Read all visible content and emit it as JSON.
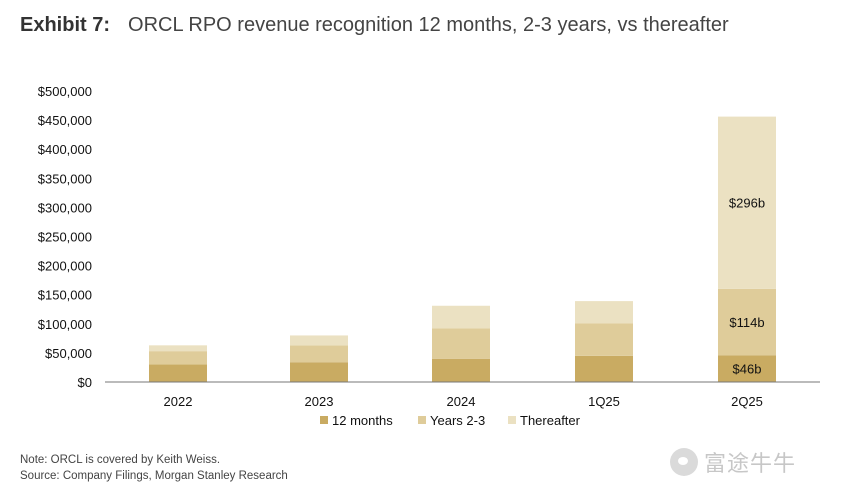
{
  "header": {
    "exhibit": "Exhibit 7:",
    "title": "ORCL RPO revenue recognition 12 months, 2-3 years, vs thereafter"
  },
  "footer": {
    "note": "Note: ORCL is covered by Keith Weiss.",
    "source": "Source: Company Filings, Morgan Stanley Research"
  },
  "watermark": {
    "text": "富途牛牛",
    "icon": "futu-logo-icon"
  },
  "colors": {
    "months12": "#c9ab62",
    "years23": "#dfcc9a",
    "thereafter": "#ebe1c2",
    "axis": "#777777"
  },
  "chart_data": {
    "type": "bar",
    "stacked": true,
    "categories": [
      "2022",
      "2023",
      "2024",
      "1Q25",
      "2Q25"
    ],
    "series": [
      {
        "name": "12 months",
        "values": [
          30000,
          34000,
          40000,
          45000,
          46000
        ]
      },
      {
        "name": "Years 2-3",
        "values": [
          23000,
          29000,
          52000,
          56000,
          114000
        ]
      },
      {
        "name": "Thereafter",
        "values": [
          10000,
          17000,
          39000,
          38000,
          296000
        ]
      }
    ],
    "data_labels": {
      "2Q25": [
        "$46b",
        "$114b",
        "$296b"
      ]
    },
    "ylim": [
      0,
      500000
    ],
    "yticks": [
      0,
      50000,
      100000,
      150000,
      200000,
      250000,
      300000,
      350000,
      400000,
      450000,
      500000
    ],
    "ytick_labels": [
      "$0",
      "$50,000",
      "$100,000",
      "$150,000",
      "$200,000",
      "$250,000",
      "$300,000",
      "$350,000",
      "$400,000",
      "$450,000",
      "$500,000"
    ],
    "legend_position": "bottom",
    "grid": false
  }
}
